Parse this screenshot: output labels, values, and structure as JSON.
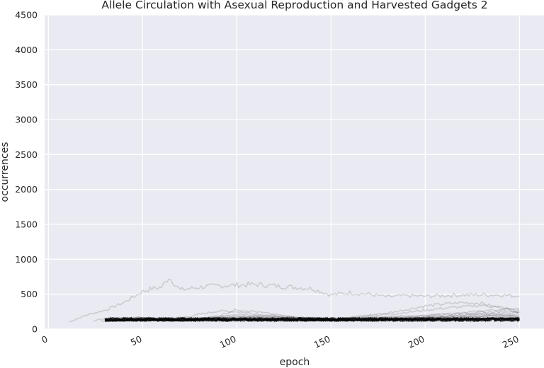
{
  "chart_data": {
    "type": "line",
    "title": "Allele Circulation with Asexual Reproduction and Harvested Gadgets 2",
    "xlabel": "epoch",
    "ylabel": "occurrences",
    "xlim": [
      -2,
      263
    ],
    "ylim": [
      0,
      4500
    ],
    "xticks": [
      0,
      50,
      100,
      150,
      200,
      250
    ],
    "yticks": [
      0,
      500,
      1000,
      1500,
      2000,
      2500,
      3000,
      3500,
      4000,
      4500
    ],
    "grid": true,
    "style": "seaborn-darkgrid",
    "line_color": "#000000",
    "line_opacity": 0.13,
    "background_color": "#eaeaf2",
    "series": [
      {
        "x": [
          11,
          20,
          30,
          40,
          50,
          55,
          60,
          64,
          70,
          80,
          90,
          100,
          110,
          120,
          130,
          140,
          150,
          160,
          170,
          180,
          190,
          200,
          210,
          220,
          230,
          240,
          250
        ],
        "values": [
          100,
          200,
          270,
          380,
          540,
          580,
          600,
          740,
          560,
          600,
          620,
          630,
          640,
          620,
          600,
          580,
          490,
          520,
          500,
          460,
          480,
          470,
          480,
          490,
          490,
          490,
          470
        ]
      },
      {
        "x": [
          24,
          30,
          40,
          50,
          60,
          70,
          75,
          80,
          90,
          100,
          110,
          120,
          130,
          140,
          150,
          160,
          170,
          180,
          190,
          200,
          210,
          220,
          230,
          240,
          250
        ],
        "values": [
          120,
          150,
          160,
          170,
          150,
          165,
          180,
          210,
          260,
          250,
          220,
          190,
          160,
          150,
          150,
          170,
          200,
          230,
          280,
          330,
          360,
          380,
          370,
          300,
          240
        ]
      },
      {
        "x": [
          28,
          40,
          50,
          60,
          70,
          80,
          90,
          100,
          110,
          120,
          130,
          140,
          150,
          160,
          170,
          180,
          190,
          200,
          210,
          220,
          230,
          240,
          250
        ],
        "values": [
          115,
          120,
          130,
          135,
          140,
          150,
          180,
          220,
          200,
          180,
          170,
          150,
          140,
          160,
          190,
          210,
          240,
          270,
          300,
          320,
          340,
          310,
          260
        ]
      },
      {
        "x": [
          30,
          40,
          50,
          60,
          70,
          80,
          90,
          100,
          110,
          120,
          130,
          140,
          150,
          160,
          170,
          180,
          190,
          200,
          210,
          220,
          230,
          240,
          250
        ],
        "values": [
          110,
          125,
          140,
          130,
          120,
          145,
          160,
          170,
          165,
          150,
          140,
          145,
          150,
          140,
          150,
          160,
          170,
          190,
          210,
          230,
          260,
          280,
          300
        ]
      },
      {
        "x": [
          30,
          40,
          50,
          60,
          70,
          80,
          90,
          100,
          110,
          120,
          130,
          140,
          150,
          160,
          170,
          180,
          190,
          200,
          210,
          220,
          230,
          240,
          250
        ],
        "values": [
          120,
          130,
          125,
          135,
          140,
          150,
          190,
          280,
          250,
          210,
          175,
          160,
          150,
          145,
          140,
          150,
          155,
          165,
          180,
          200,
          220,
          210,
          190
        ]
      },
      {
        "x": [
          30,
          40,
          50,
          60,
          70,
          80,
          90,
          100,
          110,
          120,
          130,
          140,
          150,
          160,
          170,
          180,
          190,
          200,
          210,
          220,
          230,
          240,
          250
        ],
        "values": [
          130,
          140,
          150,
          140,
          135,
          140,
          150,
          160,
          170,
          160,
          150,
          145,
          140,
          150,
          165,
          175,
          185,
          200,
          215,
          230,
          240,
          250,
          255
        ]
      },
      {
        "x": [
          30,
          40,
          50,
          60,
          70,
          80,
          90,
          100,
          110,
          120,
          130,
          140,
          150,
          160,
          170,
          180,
          190,
          200,
          210,
          220,
          230,
          240,
          250
        ],
        "values": [
          125,
          130,
          135,
          130,
          140,
          145,
          155,
          150,
          160,
          170,
          165,
          160,
          155,
          150,
          145,
          140,
          150,
          160,
          170,
          180,
          190,
          200,
          210
        ]
      },
      {
        "x": [
          30,
          40,
          50,
          60,
          70,
          80,
          90,
          100,
          110,
          120,
          130,
          140,
          150,
          160,
          170,
          180,
          190,
          200,
          210,
          220,
          230,
          240,
          250
        ],
        "values": [
          120,
          135,
          140,
          150,
          130,
          140,
          160,
          175,
          185,
          180,
          170,
          155,
          140,
          135,
          140,
          150,
          160,
          175,
          190,
          205,
          220,
          230,
          240
        ]
      },
      {
        "x": [
          30,
          40,
          50,
          60,
          70,
          80,
          90,
          100,
          110,
          120,
          130,
          140,
          150,
          160,
          170,
          180,
          190,
          200,
          210,
          220,
          230,
          240,
          250
        ],
        "values": [
          118,
          122,
          128,
          125,
          132,
          138,
          145,
          150,
          148,
          142,
          138,
          135,
          132,
          138,
          146,
          152,
          158,
          165,
          172,
          178,
          182,
          186,
          190
        ]
      },
      {
        "x": [
          30,
          40,
          50,
          60,
          70,
          80,
          90,
          100,
          110,
          120,
          130,
          140,
          150,
          160,
          170,
          180,
          190,
          200,
          210,
          220,
          230,
          240,
          250
        ],
        "values": [
          130,
          145,
          160,
          140,
          130,
          150,
          170,
          190,
          175,
          160,
          150,
          140,
          135,
          150,
          170,
          180,
          175,
          170,
          165,
          170,
          180,
          185,
          180
        ]
      },
      {
        "x": [
          30,
          40,
          50,
          60,
          70,
          80,
          90,
          100,
          110,
          120,
          130,
          140,
          150,
          160,
          170,
          180,
          190,
          200,
          210,
          220,
          230,
          240,
          250
        ],
        "values": [
          125,
          128,
          131,
          129,
          127,
          133,
          139,
          144,
          142,
          137,
          133,
          130,
          128,
          131,
          135,
          139,
          143,
          147,
          151,
          154,
          157,
          159,
          160
        ]
      },
      {
        "x": [
          30,
          40,
          50,
          60,
          70,
          80,
          90,
          100,
          110,
          120,
          130,
          140,
          150,
          160,
          170,
          180,
          190,
          200,
          210,
          220,
          230,
          240,
          250
        ],
        "values": [
          115,
          120,
          118,
          122,
          126,
          130,
          135,
          140,
          138,
          134,
          130,
          128,
          126,
          129,
          133,
          137,
          141,
          145,
          149,
          152,
          155,
          157,
          158
        ]
      },
      {
        "x": [
          30,
          40,
          50,
          60,
          70,
          80,
          90,
          100,
          110,
          120,
          130,
          140,
          150,
          160,
          170,
          180,
          190,
          200,
          210,
          220,
          230,
          240,
          250
        ],
        "values": [
          120,
          125,
          130,
          127,
          124,
          129,
          134,
          139,
          137,
          133,
          129,
          126,
          124,
          127,
          131,
          135,
          139,
          143,
          147,
          150,
          153,
          155,
          156
        ]
      },
      {
        "x": [
          30,
          40,
          50,
          60,
          70,
          80,
          90,
          100,
          110,
          120,
          130,
          140,
          150,
          160,
          170,
          180,
          190,
          200,
          210,
          220,
          230,
          240,
          250
        ],
        "values": [
          122,
          126,
          129,
          126,
          123,
          127,
          131,
          136,
          134,
          130,
          127,
          125,
          123,
          126,
          130,
          134,
          137,
          140,
          143,
          146,
          148,
          150,
          151
        ]
      },
      {
        "x": [
          30,
          40,
          50,
          60,
          70,
          80,
          90,
          100,
          110,
          120,
          130,
          140,
          150,
          160,
          170,
          180,
          190,
          200,
          210,
          220,
          230,
          240,
          250
        ],
        "values": [
          117,
          121,
          124,
          122,
          120,
          124,
          128,
          132,
          130,
          127,
          124,
          122,
          120,
          123,
          127,
          131,
          134,
          137,
          140,
          142,
          144,
          145,
          146
        ]
      },
      {
        "x": [
          30,
          40,
          50,
          60,
          70,
          80,
          90,
          100,
          110,
          120,
          130,
          140,
          150,
          160,
          170,
          180,
          190,
          200,
          210,
          220,
          230,
          240,
          250
        ],
        "values": [
          119,
          123,
          126,
          124,
          121,
          125,
          129,
          133,
          131,
          128,
          125,
          123,
          121,
          124,
          128,
          132,
          135,
          138,
          141,
          143,
          145,
          146,
          147
        ]
      },
      {
        "x": [
          30,
          40,
          50,
          60,
          70,
          80,
          90,
          100,
          110,
          120,
          130,
          140,
          150,
          160,
          170,
          180,
          190,
          200,
          210,
          220,
          230,
          240,
          250
        ],
        "values": [
          121,
          124,
          127,
          125,
          122,
          126,
          130,
          134,
          132,
          129,
          126,
          124,
          122,
          125,
          129,
          133,
          136,
          139,
          142,
          144,
          146,
          147,
          148
        ]
      },
      {
        "x": [
          30,
          40,
          50,
          60,
          70,
          80,
          90,
          100,
          110,
          120,
          130,
          140,
          150,
          160,
          170,
          180,
          190,
          200,
          210,
          220,
          230,
          240,
          250
        ],
        "values": [
          116,
          119,
          122,
          120,
          118,
          122,
          126,
          130,
          128,
          125,
          122,
          120,
          118,
          121,
          125,
          129,
          132,
          135,
          138,
          140,
          142,
          143,
          144
        ]
      },
      {
        "x": [
          30,
          40,
          50,
          60,
          70,
          80,
          90,
          100,
          110,
          120,
          130,
          140,
          150,
          160,
          170,
          180,
          190,
          200,
          210,
          220,
          230,
          240,
          250
        ],
        "values": [
          123,
          127,
          130,
          128,
          125,
          129,
          133,
          137,
          135,
          131,
          128,
          126,
          124,
          127,
          131,
          135,
          138,
          141,
          144,
          146,
          148,
          149,
          150
        ]
      },
      {
        "x": [
          30,
          40,
          50,
          60,
          70,
          80,
          90,
          100,
          110,
          120,
          130,
          140,
          150,
          160,
          170,
          180,
          190,
          200,
          210,
          220,
          230,
          240,
          250
        ],
        "values": [
          118,
          122,
          125,
          123,
          121,
          125,
          129,
          133,
          131,
          128,
          125,
          123,
          121,
          124,
          128,
          132,
          135,
          138,
          141,
          143,
          145,
          146,
          147
        ]
      }
    ]
  }
}
